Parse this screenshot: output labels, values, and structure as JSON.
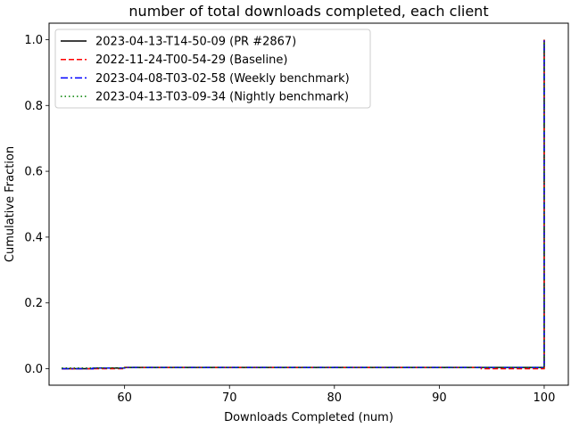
{
  "chart_data": {
    "type": "line",
    "title": "number of total downloads completed, each client",
    "xlabel": "Downloads Completed (num)",
    "ylabel": "Cumulative Fraction",
    "xlim": [
      52.8,
      102.3
    ],
    "ylim": [
      -0.05,
      1.05
    ],
    "xticks": [
      60,
      70,
      80,
      90,
      100
    ],
    "yticks": [
      0.0,
      0.2,
      0.4,
      0.6,
      0.8,
      1.0
    ],
    "xtick_labels": [
      "60",
      "70",
      "80",
      "90",
      "100"
    ],
    "ytick_labels": [
      "0.0",
      "0.2",
      "0.4",
      "0.6",
      "0.8",
      "1.0"
    ],
    "grid": false,
    "legend_position": "upper-left",
    "series": [
      {
        "name": "2023-04-13-T14-50-09 (PR #2867)",
        "color": "#000000",
        "style": "solid",
        "x": [
          54,
          57,
          57,
          60,
          60,
          100,
          100
        ],
        "y": [
          0.0,
          0.0,
          0.002,
          0.002,
          0.004,
          0.004,
          1.0
        ]
      },
      {
        "name": "2022-11-24-T00-54-29 (Baseline)",
        "color": "#ff0000",
        "style": "dashed",
        "x": [
          54,
          60,
          60,
          94,
          94,
          100,
          100
        ],
        "y": [
          0.0,
          0.0,
          0.004,
          0.004,
          0.0,
          0.0,
          1.0
        ]
      },
      {
        "name": "2023-04-08-T03-02-58 (Weekly benchmark)",
        "color": "#0000ff",
        "style": "dashdot",
        "x": [
          54,
          57,
          57,
          60,
          60,
          100,
          100
        ],
        "y": [
          0.0,
          0.0,
          0.002,
          0.002,
          0.004,
          0.004,
          1.0
        ]
      },
      {
        "name": "2023-04-13-T03-09-34 (Nightly benchmark)",
        "color": "#008000",
        "style": "dotted",
        "x": [
          54,
          60,
          60,
          100,
          100
        ],
        "y": [
          0.002,
          0.002,
          0.004,
          0.004,
          1.0
        ]
      }
    ]
  }
}
